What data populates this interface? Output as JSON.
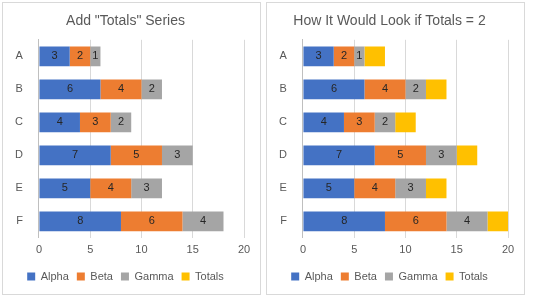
{
  "chart_data": [
    {
      "type": "bar",
      "title": "Add \"Totals\" Series",
      "orientation": "horizontal",
      "stacked": true,
      "categories": [
        "A",
        "B",
        "C",
        "D",
        "E",
        "F"
      ],
      "series": [
        {
          "name": "Alpha",
          "color": "#4472c4",
          "values": [
            3,
            6,
            4,
            7,
            5,
            8
          ],
          "data_labels": true
        },
        {
          "name": "Beta",
          "color": "#ed7d31",
          "values": [
            2,
            4,
            3,
            5,
            4,
            6
          ],
          "data_labels": true
        },
        {
          "name": "Gamma",
          "color": "#a5a5a5",
          "values": [
            1,
            2,
            2,
            3,
            3,
            4
          ],
          "data_labels": true
        },
        {
          "name": "Totals",
          "color": "#ffc000",
          "values": [
            null,
            null,
            null,
            null,
            null,
            null
          ],
          "data_labels": false
        }
      ],
      "xlim": [
        0,
        20
      ],
      "xticks": [
        0,
        5,
        10,
        15,
        20
      ],
      "grid": true,
      "legend": "bottom"
    },
    {
      "type": "bar",
      "title": "How It Would Look if Totals = 2",
      "orientation": "horizontal",
      "stacked": true,
      "categories": [
        "A",
        "B",
        "C",
        "D",
        "E",
        "F"
      ],
      "series": [
        {
          "name": "Alpha",
          "color": "#4472c4",
          "values": [
            3,
            6,
            4,
            7,
            5,
            8
          ],
          "data_labels": true
        },
        {
          "name": "Beta",
          "color": "#ed7d31",
          "values": [
            2,
            4,
            3,
            5,
            4,
            6
          ],
          "data_labels": true
        },
        {
          "name": "Gamma",
          "color": "#a5a5a5",
          "values": [
            1,
            2,
            2,
            3,
            3,
            4
          ],
          "data_labels": true
        },
        {
          "name": "Totals",
          "color": "#ffc000",
          "values": [
            2,
            2,
            2,
            2,
            2,
            2
          ],
          "data_labels": false
        }
      ],
      "xlim": [
        0,
        20
      ],
      "xticks": [
        0,
        5,
        10,
        15,
        20
      ],
      "grid": true,
      "legend": "bottom"
    }
  ]
}
